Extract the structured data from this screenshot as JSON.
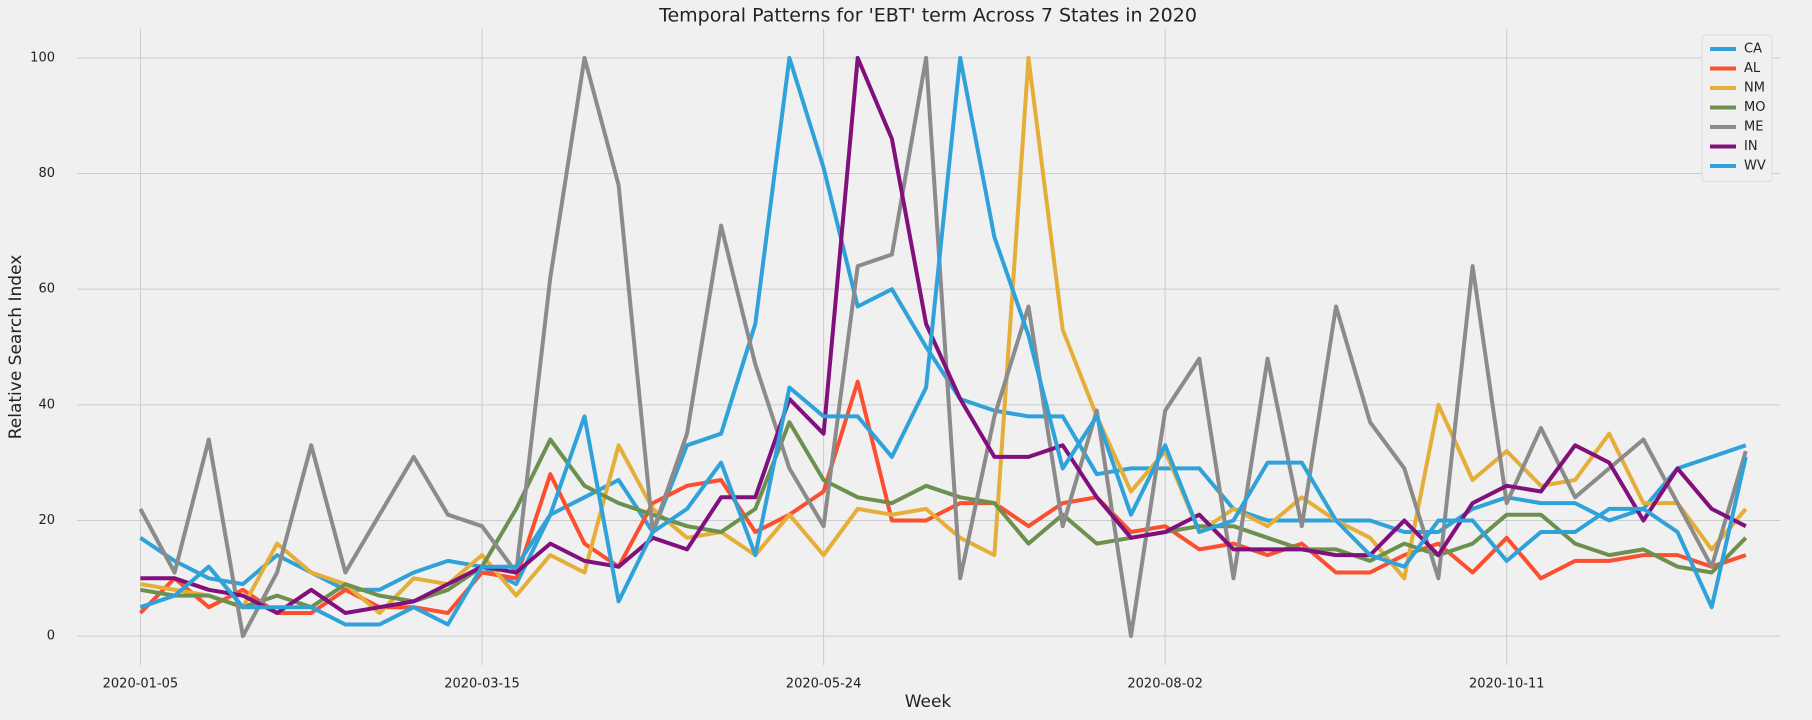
{
  "chart_data": {
    "type": "line",
    "title": "Temporal Patterns for 'EBT' term Across 7 States in 2020",
    "xlabel": "Week",
    "ylabel": "Relative Search Index",
    "x": [
      "2020-01-05",
      "2020-01-12",
      "2020-01-19",
      "2020-01-26",
      "2020-02-02",
      "2020-02-09",
      "2020-02-16",
      "2020-02-23",
      "2020-03-01",
      "2020-03-08",
      "2020-03-15",
      "2020-03-22",
      "2020-03-29",
      "2020-04-05",
      "2020-04-12",
      "2020-04-19",
      "2020-04-26",
      "2020-05-03",
      "2020-05-10",
      "2020-05-17",
      "2020-05-24",
      "2020-05-31",
      "2020-06-07",
      "2020-06-14",
      "2020-06-21",
      "2020-06-28",
      "2020-07-05",
      "2020-07-12",
      "2020-07-19",
      "2020-07-26",
      "2020-08-02",
      "2020-08-09",
      "2020-08-16",
      "2020-08-23",
      "2020-08-30",
      "2020-09-06",
      "2020-09-13",
      "2020-09-20",
      "2020-09-27",
      "2020-10-04",
      "2020-10-11",
      "2020-10-18",
      "2020-10-25",
      "2020-11-01",
      "2020-11-08",
      "2020-11-15",
      "2020-11-22",
      "2020-11-29"
    ],
    "series": [
      {
        "name": "CA",
        "color": "#30a2da",
        "values": [
          17,
          13,
          10,
          9,
          14,
          11,
          8,
          8,
          11,
          13,
          12,
          9,
          21,
          24,
          27,
          18,
          33,
          35,
          54,
          100,
          81,
          57,
          60,
          50,
          41,
          39,
          38,
          38,
          28,
          29,
          29,
          29,
          22,
          20,
          20,
          20,
          20,
          18,
          18,
          22,
          24,
          23,
          23,
          20,
          22,
          29,
          31,
          33
        ]
      },
      {
        "name": "AL",
        "color": "#fc4f30",
        "values": [
          4,
          10,
          5,
          8,
          4,
          4,
          8,
          5,
          5,
          4,
          11,
          10,
          28,
          16,
          12,
          23,
          26,
          27,
          18,
          21,
          25,
          44,
          20,
          20,
          23,
          23,
          19,
          23,
          24,
          18,
          19,
          15,
          16,
          14,
          16,
          11,
          11,
          14,
          16,
          11,
          17,
          10,
          13,
          13,
          14,
          14,
          12,
          14
        ]
      },
      {
        "name": "NM",
        "color": "#e5ae38",
        "values": [
          9,
          8,
          7,
          5,
          16,
          11,
          9,
          4,
          10,
          9,
          14,
          7,
          14,
          11,
          33,
          22,
          17,
          18,
          14,
          21,
          14,
          22,
          21,
          22,
          17,
          14,
          100,
          53,
          38,
          25,
          32,
          18,
          22,
          19,
          24,
          20,
          17,
          10,
          40,
          27,
          32,
          26,
          27,
          35,
          23,
          23,
          15,
          22
        ]
      },
      {
        "name": "MO",
        "color": "#6d904f",
        "values": [
          8,
          7,
          7,
          5,
          7,
          5,
          9,
          7,
          6,
          8,
          12,
          22,
          34,
          26,
          23,
          21,
          19,
          18,
          22,
          37,
          27,
          24,
          23,
          26,
          24,
          23,
          16,
          21,
          16,
          17,
          18,
          19,
          19,
          17,
          15,
          15,
          13,
          16,
          14,
          16,
          21,
          21,
          16,
          14,
          15,
          12,
          11,
          17
        ]
      },
      {
        "name": "ME",
        "color": "#8b8b8b",
        "values": [
          22,
          11,
          34,
          0,
          11,
          33,
          11,
          21,
          31,
          21,
          19,
          11,
          62,
          100,
          78,
          18,
          35,
          71,
          47,
          29,
          19,
          64,
          66,
          100,
          10,
          38,
          57,
          19,
          39,
          0,
          39,
          48,
          10,
          48,
          19,
          57,
          37,
          29,
          10,
          64,
          23,
          36,
          24,
          29,
          34,
          23,
          12,
          32
        ]
      },
      {
        "name": "IN",
        "color": "#810f7c",
        "values": [
          10,
          10,
          8,
          7,
          4,
          8,
          4,
          5,
          6,
          9,
          12,
          11,
          16,
          13,
          12,
          17,
          15,
          24,
          24,
          41,
          35,
          100,
          86,
          54,
          41,
          31,
          31,
          33,
          24,
          17,
          18,
          21,
          15,
          15,
          15,
          14,
          14,
          20,
          14,
          23,
          26,
          25,
          33,
          30,
          20,
          29,
          22,
          19
        ]
      },
      {
        "name": "WV",
        "color": "#30a2da",
        "values": [
          5,
          7,
          12,
          5,
          5,
          5,
          2,
          2,
          5,
          2,
          12,
          12,
          21,
          38,
          6,
          18,
          22,
          30,
          14,
          43,
          38,
          38,
          31,
          43,
          100,
          69,
          52,
          29,
          38,
          21,
          33,
          18,
          20,
          30,
          30,
          20,
          14,
          12,
          20,
          20,
          13,
          18,
          18,
          22,
          22,
          18,
          5,
          31
        ]
      }
    ],
    "xlim": [
      "2019-12-23",
      "2020-12-06"
    ],
    "xticks": [
      "2020-01-05",
      "2020-03-15",
      "2020-05-24",
      "2020-08-02",
      "2020-10-11"
    ],
    "ylim": [
      -5,
      105
    ],
    "yticks": [
      0,
      20,
      40,
      60,
      80,
      100
    ],
    "grid": true,
    "legend": "upper right"
  }
}
